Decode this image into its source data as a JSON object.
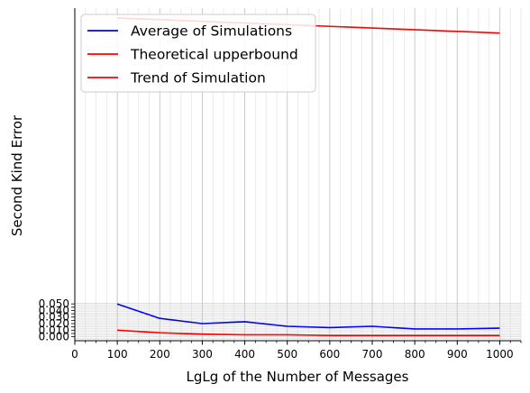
{
  "chart_data": {
    "type": "line",
    "title": "",
    "xlabel": "LgLg of the Number of Messages",
    "ylabel": "Second Kind Error",
    "xlim": [
      0,
      1050
    ],
    "ylim": [
      -0.006,
      0.5
    ],
    "x_ticks": [
      0,
      100,
      200,
      300,
      400,
      500,
      600,
      700,
      800,
      900,
      1000
    ],
    "x_tick_labels": [
      "0",
      "100",
      "200",
      "300",
      "400",
      "500",
      "600",
      "700",
      "800",
      "900",
      "1000"
    ],
    "y_tick_labels_visible": [
      "0.050",
      "0.000"
    ],
    "grid": true,
    "legend_position": "upper-left",
    "series": [
      {
        "name": "Average of Simulations",
        "color": "#0000ff",
        "x": [
          100,
          200,
          300,
          400,
          500,
          600,
          700,
          800,
          900,
          1000
        ],
        "y": [
          0.05,
          0.028,
          0.02,
          0.023,
          0.016,
          0.014,
          0.016,
          0.012,
          0.012,
          0.013
        ]
      },
      {
        "name": "Theoretical upperbound",
        "color": "#ff0000",
        "x": [
          100,
          200,
          300,
          400,
          500,
          600,
          700,
          800,
          900,
          1000
        ],
        "y": [
          0.01,
          0.006,
          0.004,
          0.003,
          0.003,
          0.002,
          0.002,
          0.002,
          0.002,
          0.002
        ]
      },
      {
        "name": "Trend of Simulation",
        "color": "#ff0000",
        "x": [
          100,
          1000
        ],
        "y": [
          0.485,
          0.462
        ]
      }
    ]
  }
}
